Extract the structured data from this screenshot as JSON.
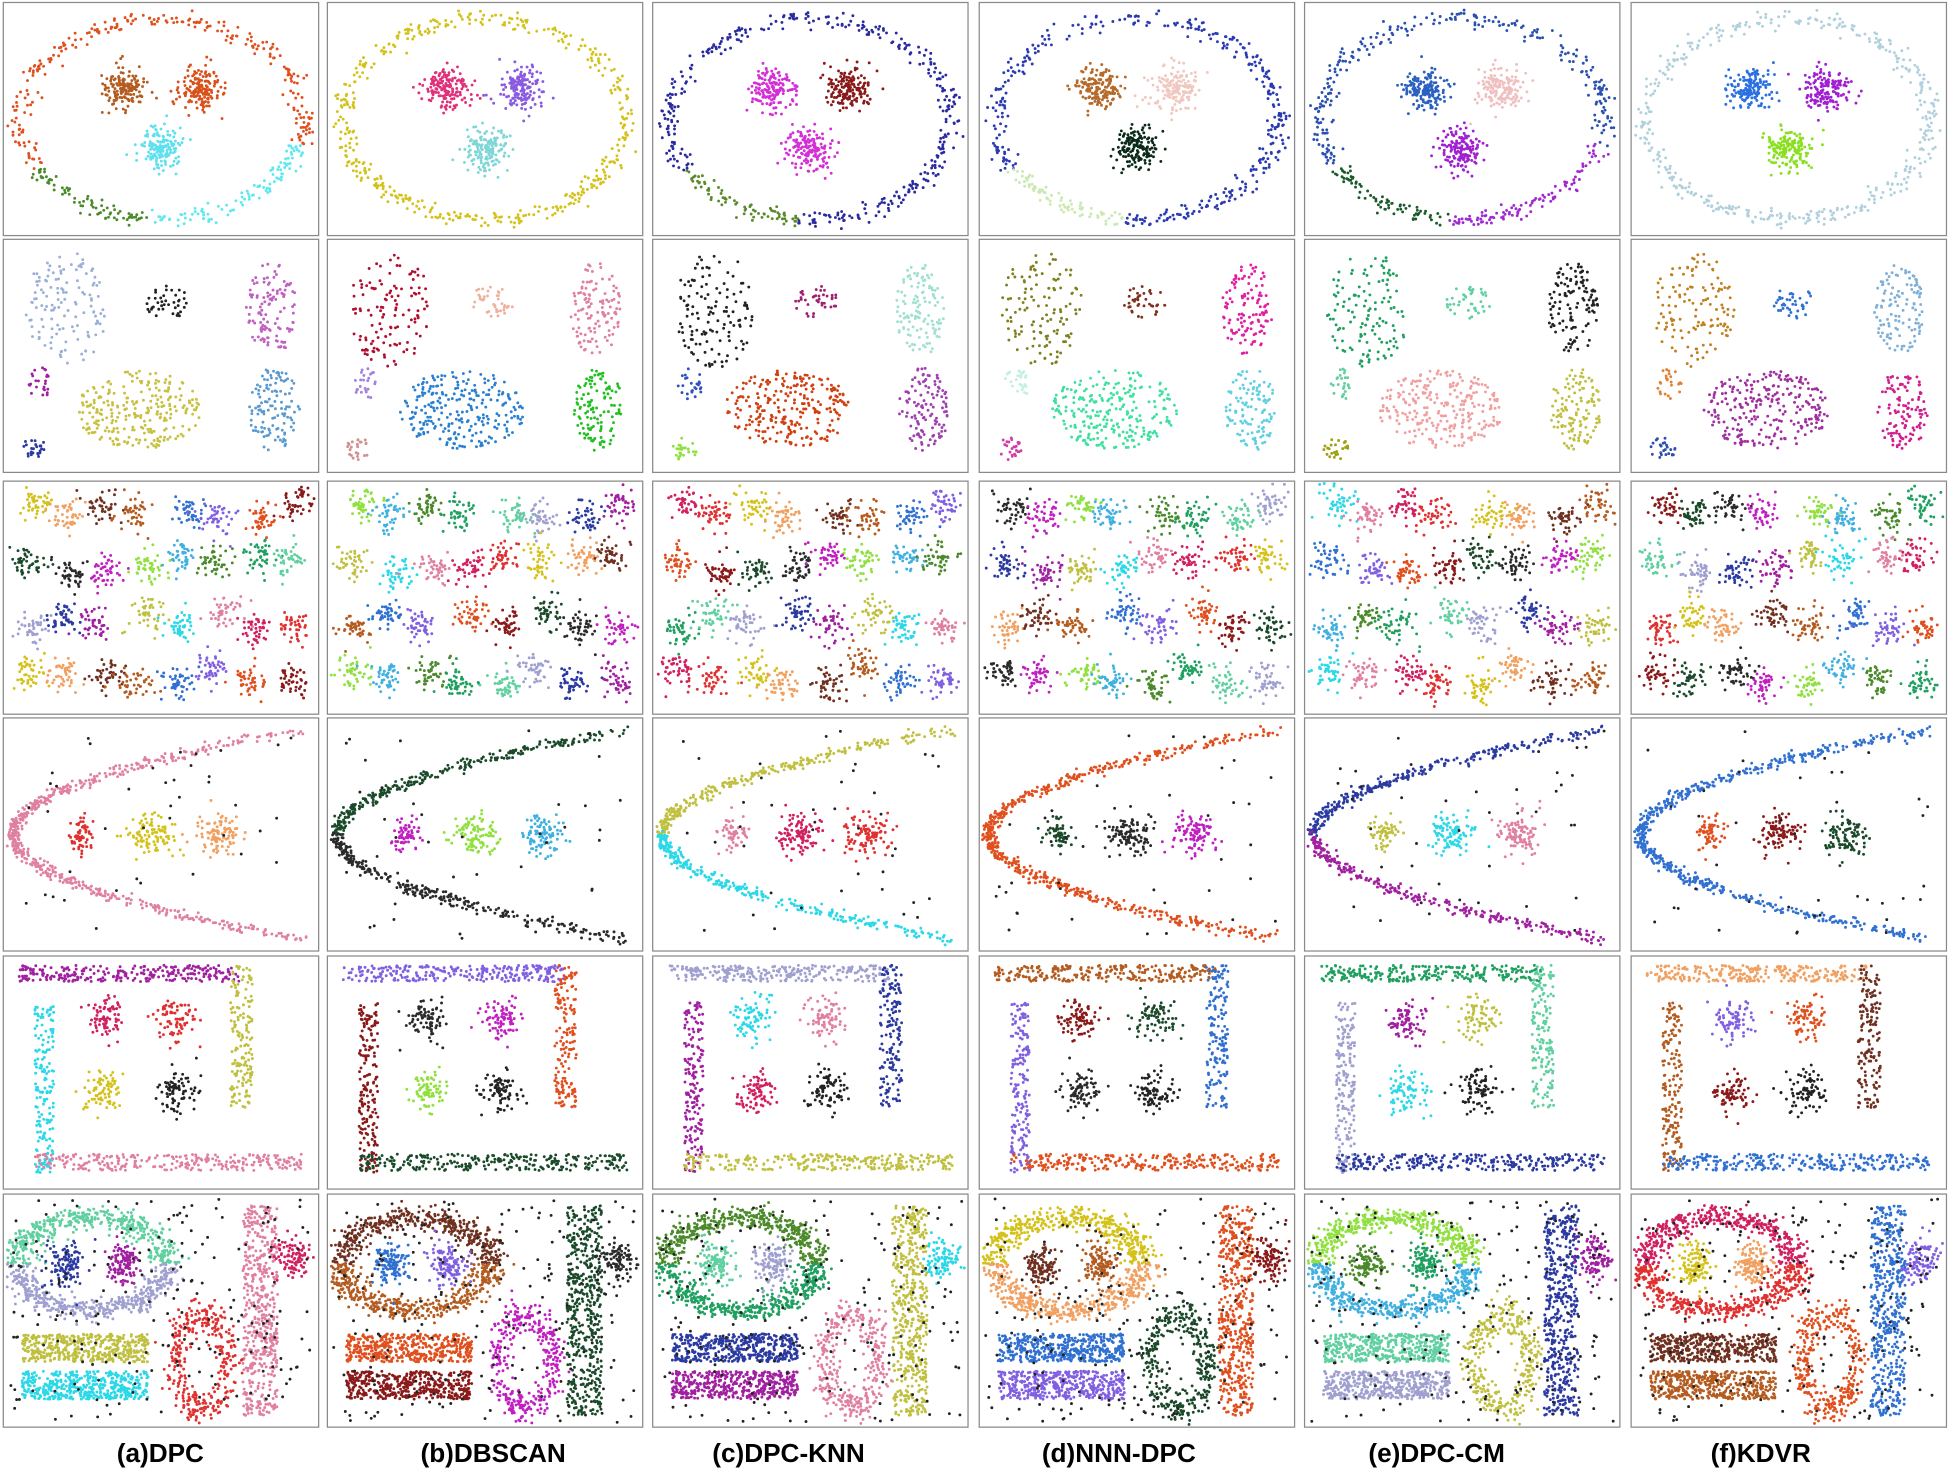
{
  "figure": {
    "columns": [
      "(a)DPC",
      "(b)DBSCAN",
      "(c)DPC-KNN",
      "(d)NNN-DPC",
      "(e)DPC-CM",
      "(f)KDVR"
    ]
  }
}
